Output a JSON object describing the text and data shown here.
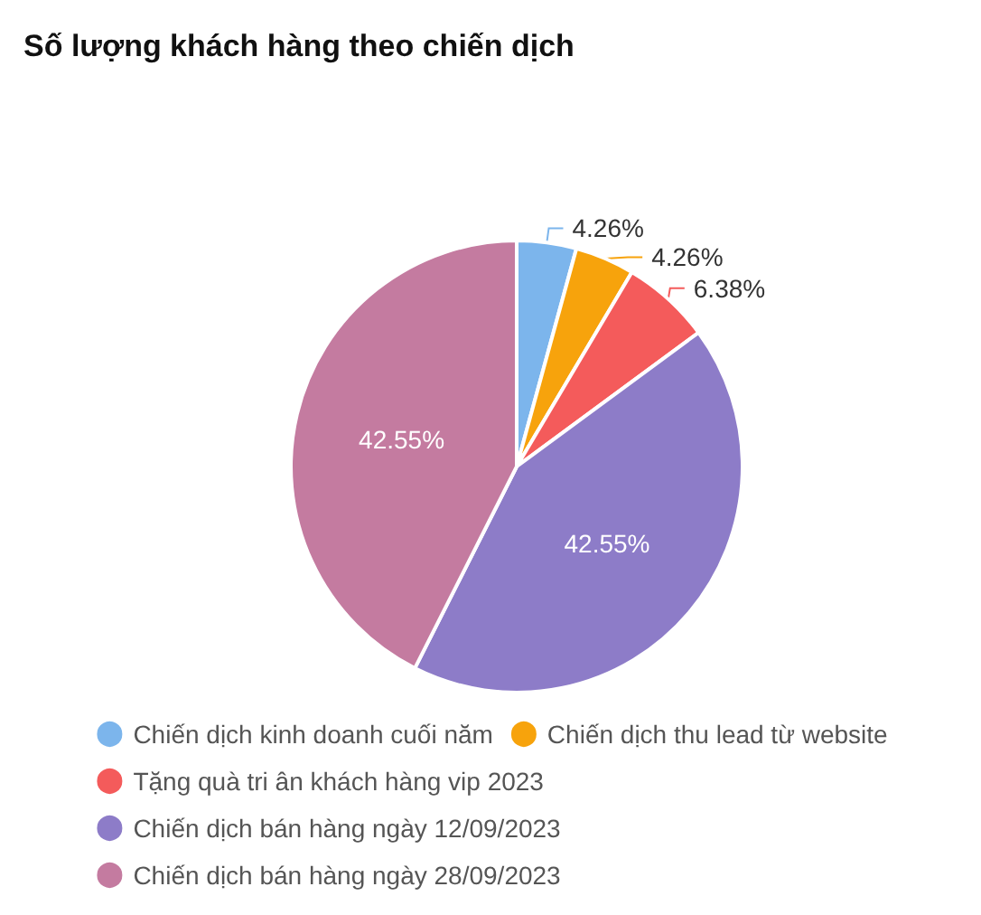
{
  "chart_data": {
    "type": "pie",
    "title": "Số lượng khách hàng theo chiến dịch",
    "categories": [
      "Chiến dịch kinh doanh cuối năm",
      "Chiến dịch thu lead từ website",
      "Tặng quà tri ân khách hàng vip 2023",
      "Chiến dịch bán hàng ngày 12/09/2023",
      "Chiến dịch bán hàng ngày 28/09/2023"
    ],
    "values": [
      4.26,
      4.26,
      6.38,
      42.55,
      42.55
    ],
    "value_labels": [
      "4.26%",
      "4.26%",
      "6.38%",
      "42.55%",
      "42.55%"
    ],
    "colors": [
      "#7cb5ec",
      "#f7a30c",
      "#f45b5b",
      "#8d7cc8",
      "#c47ba0"
    ],
    "legend": "bottom"
  }
}
